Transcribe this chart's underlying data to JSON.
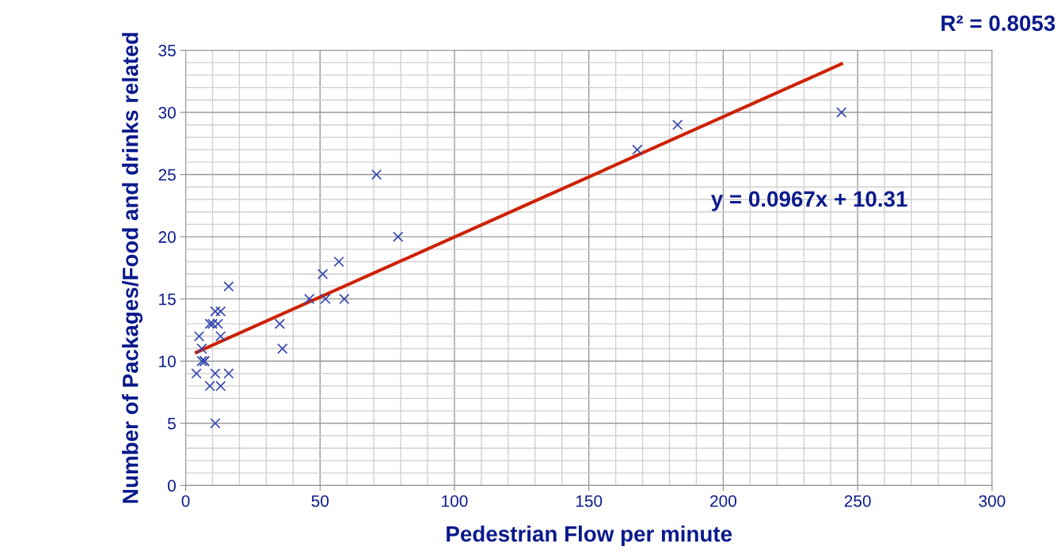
{
  "chart_data": {
    "type": "scatter",
    "xlabel": "Pedestrian Flow per minute",
    "ylabel": "Number of Packages/Food and drinks related",
    "xlim": [
      0,
      300
    ],
    "xticks": [
      0,
      50,
      100,
      150,
      200,
      250,
      300
    ],
    "ylim": [
      0,
      35
    ],
    "yticks": [
      0,
      5,
      10,
      15,
      20,
      25,
      30,
      35
    ],
    "grid": true,
    "marker": "cross",
    "series": [
      {
        "color": "#3346b0",
        "x": [
          4,
          5,
          6,
          6,
          7,
          7,
          9,
          9,
          10,
          11,
          11,
          11,
          12,
          13,
          13,
          13,
          16,
          16,
          35,
          36,
          46,
          51,
          52,
          57,
          59,
          71,
          79,
          168,
          183,
          244
        ],
        "values": [
          9,
          12,
          11,
          10,
          10,
          10,
          8,
          13,
          13,
          14,
          9,
          5,
          13,
          14,
          12,
          8,
          16,
          9,
          13,
          11,
          15,
          17,
          15,
          18,
          15,
          25,
          20,
          27,
          29,
          30
        ]
      },
      {
        "type": "line",
        "color": "#cc2200",
        "marker": "none",
        "x": [
          4,
          244
        ],
        "values": [
          10.7,
          33.9
        ]
      }
    ],
    "annotations": [
      "y = 0.0967x + 10.31",
      "R² = 0.8053"
    ]
  }
}
